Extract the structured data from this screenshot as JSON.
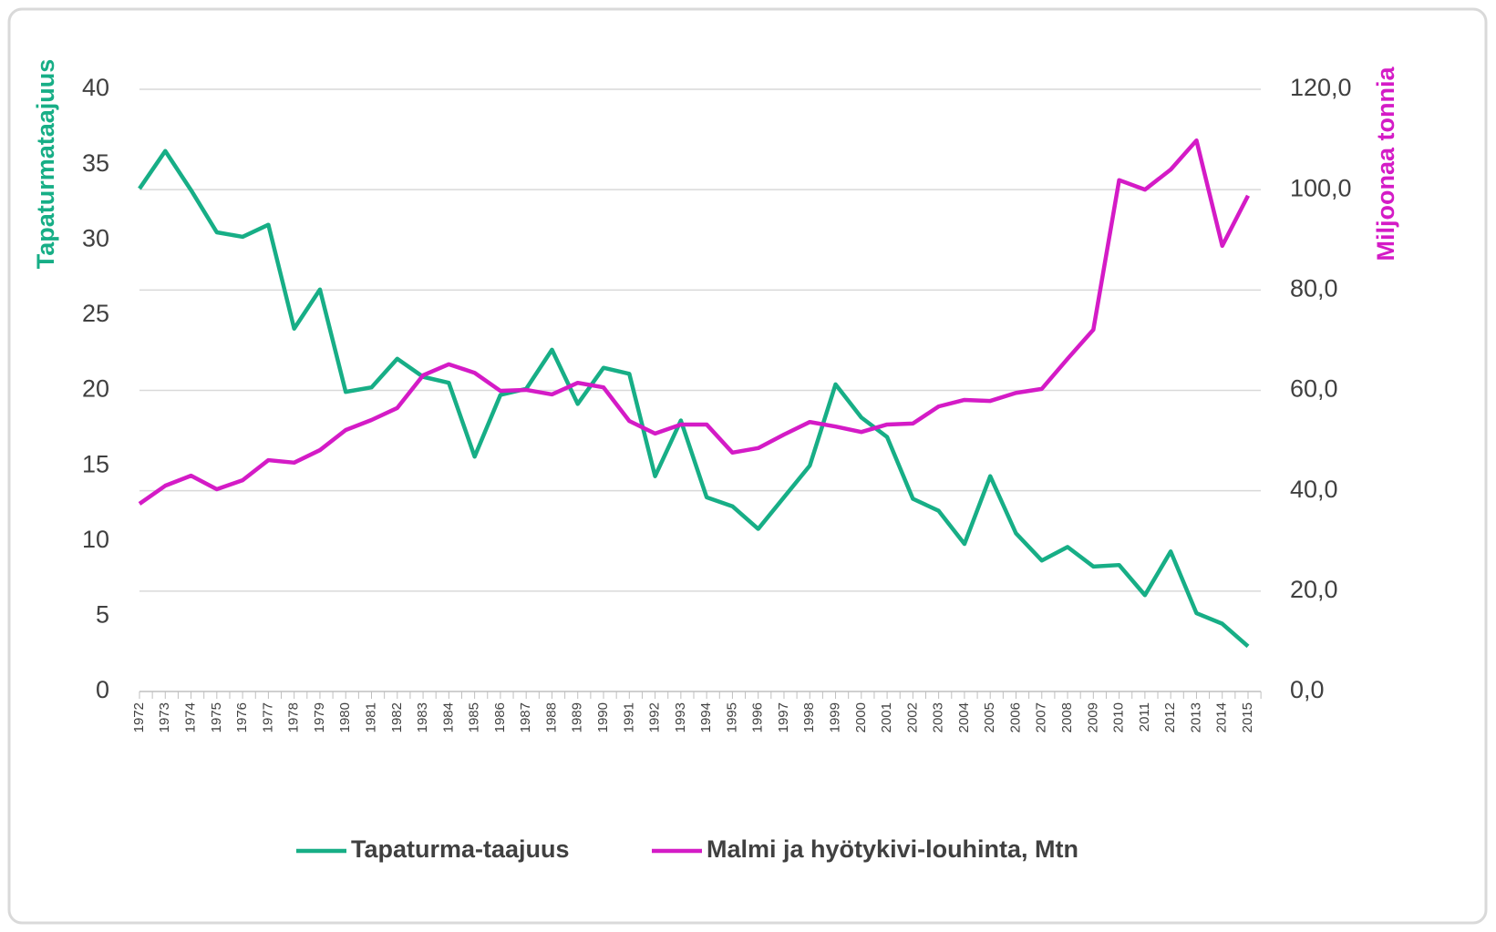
{
  "chart_data": {
    "type": "line",
    "y_label": "Tapaturmataajuus",
    "y2_label": "Miljoonaa tonnia",
    "categories": [
      "1972",
      "1973",
      "1974",
      "1975",
      "1976",
      "1977",
      "1978",
      "1979",
      "1980",
      "1981",
      "1982",
      "1983",
      "1984",
      "1985",
      "1986",
      "1987",
      "1988",
      "1989",
      "1990",
      "1991",
      "1992",
      "1993",
      "1994",
      "1995",
      "1996",
      "1997",
      "1998",
      "1999",
      "2000",
      "2001",
      "2002",
      "2003",
      "2004",
      "2005",
      "2006",
      "2007",
      "2008",
      "2009",
      "2010",
      "2011",
      "2012",
      "2013",
      "2014",
      "2015"
    ],
    "series": [
      {
        "name": "Tapaturma-taajuus",
        "color": "#17ae86",
        "values": [
          33.4,
          35.9,
          33.3,
          30.5,
          30.2,
          31.0,
          24.1,
          26.7,
          19.9,
          20.2,
          22.1,
          20.9,
          20.5,
          15.6,
          19.7,
          20.1,
          22.7,
          19.1,
          21.5,
          21.1,
          14.3,
          18.0,
          12.9,
          12.3,
          10.8,
          12.9,
          15.0,
          20.4,
          18.2,
          16.9,
          12.8,
          12.0,
          9.8,
          14.3,
          10.5,
          8.7,
          9.6,
          8.3,
          8.4,
          6.4,
          9.3,
          5.2,
          4.5,
          3.0
        ]
      },
      {
        "name": "Malmi ja hyötykivi-louhinta, Mtn",
        "color": "#d41bc6",
        "axis": "y2",
        "values": [
          37.4,
          41.0,
          43.0,
          40.3,
          42.1,
          46.1,
          45.6,
          48.1,
          52.1,
          54.1,
          56.5,
          63.0,
          65.2,
          63.5,
          59.9,
          60.1,
          59.2,
          61.5,
          60.6,
          53.9,
          51.4,
          53.2,
          53.2,
          47.6,
          48.5,
          51.2,
          53.7,
          52.8,
          51.7,
          53.2,
          53.4,
          56.8,
          58.1,
          57.9,
          59.5,
          60.3,
          66.3,
          72.1,
          101.9,
          100.0,
          104.0,
          109.8,
          88.8,
          98.8
        ]
      }
    ],
    "ylim": [
      0,
      40
    ],
    "yticks": [
      0,
      5,
      10,
      15,
      20,
      25,
      30,
      35,
      40
    ],
    "y2lim": [
      0,
      120
    ],
    "y2ticks": [
      {
        "value": 0,
        "label": "0,0"
      },
      {
        "value": 20,
        "label": "20,0"
      },
      {
        "value": 40,
        "label": "40,0"
      },
      {
        "value": 60,
        "label": "60,0"
      },
      {
        "value": 80,
        "label": "80,0"
      },
      {
        "value": 100,
        "label": "100,0"
      },
      {
        "value": 120,
        "label": "120,0"
      }
    ],
    "grid": true,
    "legend": "bottom"
  }
}
